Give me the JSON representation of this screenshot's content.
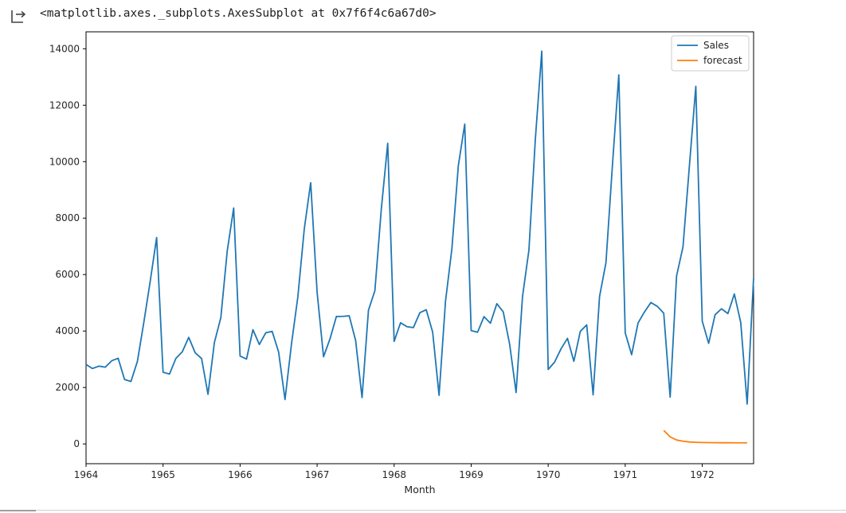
{
  "output": {
    "icon": "output-arrow-icon",
    "repr_text": "<matplotlib.axes._subplots.AxesSubplot at 0x7f6f4c6a67d0>"
  },
  "chart_data": {
    "type": "line",
    "title": "",
    "xlabel": "Month",
    "ylabel": "",
    "xlim": [
      "1964-01",
      "1972-09"
    ],
    "ylim": [
      -700,
      14600
    ],
    "grid": false,
    "legend_position": "top-right",
    "x_ticks": [
      "1964",
      "1965",
      "1966",
      "1967",
      "1968",
      "1969",
      "1970",
      "1971",
      "1972"
    ],
    "y_ticks": [
      0,
      2000,
      4000,
      6000,
      8000,
      10000,
      12000,
      14000
    ],
    "series": [
      {
        "name": "Sales",
        "color": "#1f77b4",
        "start": "1964-01",
        "values": [
          2815,
          2672,
          2755,
          2721,
          2946,
          3036,
          2282,
          2212,
          2922,
          4301,
          5764,
          7312,
          2541,
          2475,
          3031,
          3266,
          3776,
          3230,
          3028,
          1759,
          3595,
          4474,
          6838,
          8357,
          3113,
          3006,
          4047,
          3523,
          3937,
          3986,
          3260,
          1573,
          3528,
          5211,
          7614,
          9254,
          5375,
          3088,
          3718,
          4514,
          4520,
          4539,
          3663,
          1643,
          4739,
          5428,
          8314,
          10651,
          3633,
          4292,
          4154,
          4121,
          4647,
          4753,
          3965,
          1723,
          5048,
          6922,
          9858,
          11331,
          4016,
          3957,
          4510,
          4276,
          4968,
          4677,
          3523,
          1821,
          5222,
          6872,
          10803,
          13916,
          2639,
          2899,
          3370,
          3740,
          2927,
          3986,
          4217,
          1738,
          5221,
          6424,
          9842,
          13076,
          3934,
          3162,
          4286,
          4676,
          5010,
          4874,
          4633,
          1659,
          5951,
          6981,
          9851,
          12670,
          4348,
          3564,
          4577,
          4788,
          4618,
          5312,
          4298,
          1413,
          5877
        ]
      },
      {
        "name": "forecast",
        "color": "#ff7f0e",
        "start": "1971-07",
        "values": [
          480,
          250,
          140,
          95,
          70,
          58,
          50,
          46,
          44,
          42,
          41,
          40,
          40,
          40
        ]
      }
    ]
  }
}
